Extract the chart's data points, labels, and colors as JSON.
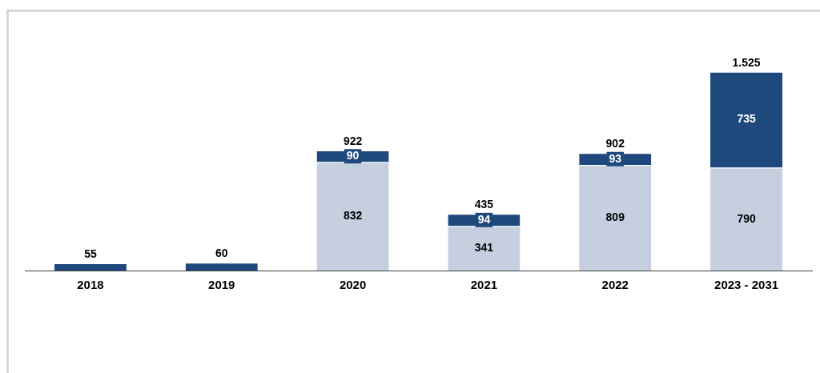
{
  "chart_data": {
    "type": "bar",
    "stacked": true,
    "legend": false,
    "categories": [
      "2018",
      "2019",
      "2020",
      "2021",
      "2022",
      "2023 - 2031"
    ],
    "series": [
      {
        "color": "#c5cfe0",
        "values": [
          null,
          null,
          832,
          341,
          809,
          790
        ],
        "value_labels": [
          null,
          null,
          "832",
          "341",
          "809",
          "790"
        ]
      },
      {
        "color": "#1f497d",
        "values": [
          55,
          60,
          90,
          94,
          93,
          735
        ],
        "value_labels": [
          null,
          null,
          "90",
          "94",
          "93",
          "735"
        ]
      }
    ],
    "totals": [
      "55",
      "60",
      "922",
      "435",
      "902",
      "1.525"
    ]
  }
}
